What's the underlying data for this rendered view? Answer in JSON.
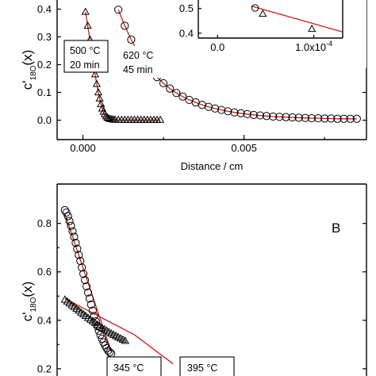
{
  "chart_data": [
    {
      "panel": "A",
      "type": "scatter",
      "xlabel": "Distance / cm",
      "ylabel": "c'18O(x)",
      "xlim": [
        -0.0008,
        0.0088
      ],
      "ylim": [
        -0.07,
        0.45
      ],
      "xticks": [
        0.0,
        0.005
      ],
      "xtick_labels": [
        "0.000",
        "0.005"
      ],
      "yticks": [
        0.0,
        0.1,
        0.2,
        0.3,
        0.4
      ],
      "ytick_labels": [
        "0.0",
        "0.1",
        "0.2",
        "0.3",
        "0.4"
      ],
      "annotations": [
        {
          "id": "annot-500",
          "lines": [
            "500 °C",
            "20 min"
          ]
        },
        {
          "id": "annot-620",
          "lines": [
            "620 °C",
            "45 min"
          ]
        }
      ],
      "series": [
        {
          "marker": "triangle",
          "fit_color": "#d01c1c",
          "x": [
            8e-05,
            0.00015,
            0.00022,
            0.00028,
            0.00033,
            0.00038,
            0.00043,
            0.00048,
            0.00052,
            0.00056,
            0.0006,
            0.00064,
            0.00068,
            0.00072,
            0.00076,
            0.0008,
            0.00085,
            0.0009,
            0.00095,
            0.001,
            0.0011,
            0.0012,
            0.0013,
            0.0014,
            0.0015,
            0.0016,
            0.0017,
            0.0018,
            0.0019,
            0.002,
            0.0021,
            0.0022,
            0.0023,
            0.0024
          ],
          "y": [
            0.39,
            0.34,
            0.29,
            0.245,
            0.2,
            0.165,
            0.13,
            0.1,
            0.078,
            0.058,
            0.042,
            0.03,
            0.021,
            0.014,
            0.009,
            0.006,
            0.004,
            0.003,
            0.002,
            0.0015,
            0.001,
            0.001,
            0.001,
            0.001,
            0.001,
            0.001,
            0.001,
            0.001,
            0.001,
            0.001,
            0.001,
            0.001,
            0.001,
            0.001
          ]
        },
        {
          "marker": "circle",
          "fit_color": "#d01c1c",
          "x": [
            0.0011,
            0.0013,
            0.0015,
            0.0017,
            0.0019,
            0.0021,
            0.0023,
            0.0025,
            0.0027,
            0.0029,
            0.0031,
            0.0033,
            0.0035,
            0.0037,
            0.0039,
            0.0041,
            0.0043,
            0.0045,
            0.0047,
            0.0049,
            0.0051,
            0.0053,
            0.0055,
            0.0057,
            0.0059,
            0.0061,
            0.0063,
            0.0065,
            0.0067,
            0.0069,
            0.0071,
            0.0073,
            0.0075,
            0.0077,
            0.0079,
            0.0081,
            0.0083,
            0.0085
          ],
          "y": [
            0.398,
            0.34,
            0.29,
            0.247,
            0.211,
            0.181,
            0.155,
            0.133,
            0.114,
            0.098,
            0.085,
            0.073,
            0.064,
            0.055,
            0.048,
            0.042,
            0.037,
            0.032,
            0.028,
            0.025,
            0.022,
            0.019,
            0.017,
            0.015,
            0.013,
            0.012,
            0.011,
            0.01,
            0.009,
            0.008,
            0.007,
            0.007,
            0.006,
            0.006,
            0.005,
            0.005,
            0.005,
            0.005
          ]
        }
      ]
    },
    {
      "panel": "A-inset",
      "type": "scatter",
      "xlim": [
        -2e-05,
        0.00013
      ],
      "ylim": [
        0.38,
        0.56
      ],
      "xticks": [
        0.0,
        0.0001
      ],
      "xtick_labels": [
        "0.0",
        "1.0x10"
      ],
      "xtick_exponent": "-4",
      "yticks": [
        0.4,
        0.5
      ],
      "ytick_labels": [
        "0.4",
        "0.5"
      ],
      "series": [
        {
          "marker": "triangle",
          "x": [
            4.7e-05,
            9.8e-05
          ],
          "y": [
            0.478,
            0.417
          ]
        },
        {
          "marker": "circle",
          "x": [
            3.9e-05
          ],
          "y": [
            0.502
          ]
        }
      ],
      "fit_line": {
        "x": [
          3.5e-05,
          0.00013
        ],
        "y": [
          0.51,
          0.405
        ]
      }
    },
    {
      "panel": "B",
      "type": "scatter",
      "panel_letter": "B",
      "ylabel": "c'18O(x)",
      "ylim": [
        0.17,
        0.93
      ],
      "yticks": [
        0.2,
        0.4,
        0.6,
        0.8
      ],
      "ytick_labels": [
        "0.2",
        "0.4",
        "0.6",
        "0.8"
      ],
      "annotations": [
        {
          "id": "annot-345",
          "lines": [
            "345 °C"
          ]
        },
        {
          "id": "annot-395",
          "lines": [
            "395 °C"
          ]
        }
      ],
      "series": [
        {
          "marker": "circle",
          "x": [
            0.1,
            0.12,
            0.14,
            0.16,
            0.18,
            0.2,
            0.22,
            0.24,
            0.26,
            0.28,
            0.3,
            0.32,
            0.34,
            0.36,
            0.38,
            0.4,
            0.42,
            0.44,
            0.46,
            0.48,
            0.5,
            0.52,
            0.54,
            0.56,
            0.58,
            0.6,
            0.62,
            0.64,
            0.66,
            0.68,
            0.7
          ],
          "y": [
            0.855,
            0.845,
            0.83,
            0.81,
            0.79,
            0.768,
            0.745,
            0.72,
            0.695,
            0.67,
            0.645,
            0.618,
            0.592,
            0.566,
            0.54,
            0.515,
            0.49,
            0.465,
            0.44,
            0.418,
            0.396,
            0.376,
            0.357,
            0.34,
            0.324,
            0.309,
            0.296,
            0.285,
            0.275,
            0.268,
            0.262
          ]
        },
        {
          "marker": "triangle",
          "x": [
            0.1,
            0.13,
            0.16,
            0.19,
            0.22,
            0.25,
            0.28,
            0.31,
            0.34,
            0.37,
            0.4,
            0.43,
            0.46,
            0.49,
            0.52,
            0.55,
            0.58,
            0.61,
            0.64,
            0.67,
            0.7,
            0.73,
            0.76,
            0.79,
            0.82,
            0.85,
            0.88
          ],
          "y": [
            0.485,
            0.478,
            0.47,
            0.462,
            0.455,
            0.447,
            0.44,
            0.432,
            0.425,
            0.418,
            0.41,
            0.403,
            0.396,
            0.389,
            0.382,
            0.375,
            0.369,
            0.363,
            0.357,
            0.351,
            0.345,
            0.34,
            0.335,
            0.33,
            0.325,
            0.32,
            0.315
          ]
        }
      ],
      "fit_lines": [
        {
          "x": [
            0.1,
            0.7
          ],
          "y": [
            0.84,
            0.27
          ]
        },
        {
          "x": [
            0.1,
            1.0,
            1.5
          ],
          "y": [
            0.49,
            0.34,
            0.22
          ]
        }
      ]
    }
  ]
}
